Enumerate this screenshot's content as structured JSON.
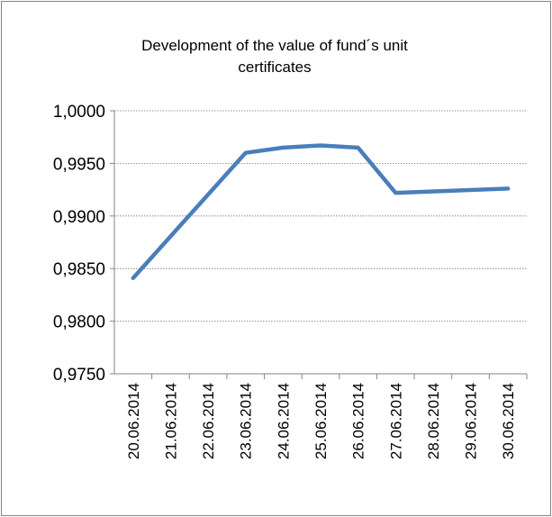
{
  "chart_data": {
    "type": "line",
    "title": "Development of the value of fund´s unit certificates",
    "xticks": [
      "20.06.2014",
      "21.06.2014",
      "22.06.2014",
      "23.06.2014",
      "24.06.2014",
      "25.06.2014",
      "26.06.2014",
      "27.06.2014",
      "28.06.2014",
      "29.06.2014",
      "30.06.2014"
    ],
    "x": [
      "20.06.2014",
      "23.06.2014",
      "24.06.2014",
      "25.06.2014",
      "26.06.2014",
      "27.06.2014",
      "30.06.2014"
    ],
    "values": [
      0.9841,
      0.996,
      0.9965,
      0.9967,
      0.9965,
      0.9922,
      0.9926
    ],
    "color": "#4a7ebb",
    "ylim": [
      0.975,
      1.0
    ],
    "yticks": [
      {
        "value": 0.975,
        "label": "0,9750"
      },
      {
        "value": 0.98,
        "label": "0,9800"
      },
      {
        "value": 0.985,
        "label": "0,9850"
      },
      {
        "value": 0.99,
        "label": "0,9900"
      },
      {
        "value": 0.995,
        "label": "0,9950"
      },
      {
        "value": 1.0,
        "label": "1,0000"
      }
    ],
    "grid": true
  }
}
